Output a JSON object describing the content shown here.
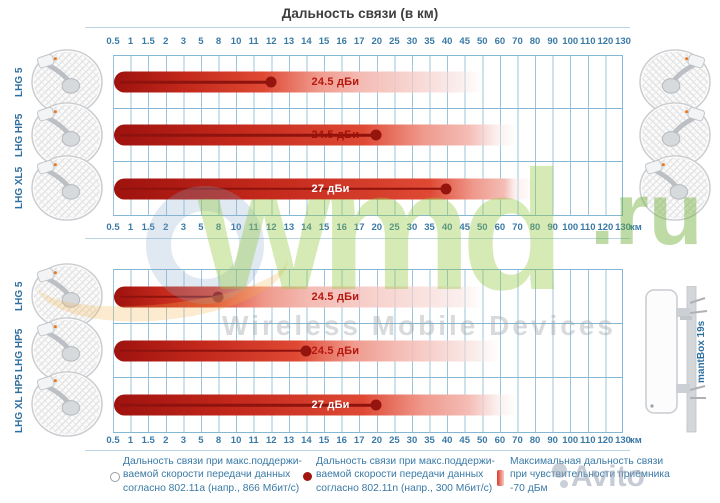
{
  "page": {
    "title": "Дальность связи (в км)"
  },
  "chart_data": {
    "type": "bar",
    "orientation": "horizontal-range",
    "title": "Дальность связи (в км)",
    "xlabel": "км",
    "x_unit": "км",
    "x_tick_labels": [
      "0.5",
      "1",
      "1.5",
      "2",
      "3",
      "5",
      "8",
      "10",
      "11",
      "12",
      "13",
      "14",
      "15",
      "16",
      "17",
      "20",
      "25",
      "30",
      "35",
      "40",
      "45",
      "50",
      "60",
      "70",
      "80",
      "90",
      "100",
      "110",
      "120",
      "130"
    ],
    "grid": true,
    "groups": [
      {
        "rows": [
          {
            "device": "LHG 5",
            "gain": "24.5 дБи",
            "gain_dbi": 24.5,
            "range_n_km": 12,
            "dot_tick": "12",
            "max_range_approx_km": 50,
            "fade_tick": "50",
            "label_color": "#b5180f"
          },
          {
            "device": "LHG HP5",
            "gain": "24.5 дБи",
            "gain_dbi": 24.5,
            "range_n_km": 20,
            "dot_tick": "20",
            "max_range_approx_km": 70,
            "fade_tick": "70",
            "label_color": "#9e1208"
          },
          {
            "device": "LHG XL5",
            "gain": "27 дБи",
            "gain_dbi": 27,
            "range_n_km": 40,
            "dot_tick": "40",
            "max_range_approx_km": 80,
            "fade_tick": "80",
            "label_color": "#ffffff"
          }
        ],
        "right_side": "lhg-dishes"
      },
      {
        "rows": [
          {
            "device": "LHG 5",
            "gain": "24.5 дБи",
            "gain_dbi": 24.5,
            "range_n_km": 8,
            "dot_tick": "8",
            "max_range_approx_km": 50,
            "fade_tick": "50",
            "label_color": "#b5180f"
          },
          {
            "device": "LHG HP5",
            "gain": "24.5 дБи",
            "gain_dbi": 24.5,
            "range_n_km": 14,
            "dot_tick": "14",
            "max_range_approx_km": 60,
            "fade_tick": "60",
            "label_color": "#b5180f"
          },
          {
            "device": "LHG XL HP5",
            "gain": "27 дБи",
            "gain_dbi": 27,
            "range_n_km": 20,
            "dot_tick": "20",
            "max_range_approx_km": 70,
            "fade_tick": "70",
            "label_color": "#ffffff"
          }
        ],
        "right_side": "mantbox",
        "right_device_label": "mantBox 19s"
      }
    ],
    "legend_position": "bottom"
  },
  "legend": [
    {
      "marker": "circle-outline",
      "lines": [
        "Дальность связи при макс.поддержи-",
        "ваемой скорости передачи данных",
        "согласно 802.11a (напр., 866 Мбит/с)"
      ]
    },
    {
      "marker": "circle-filled",
      "lines": [
        "Дальность связи при макс.поддержи-",
        "ваемой скорости передачи данных",
        "согласно 802.11n (напр., 300 Мбит/с)"
      ]
    },
    {
      "marker": "gradient-bar",
      "lines": [
        "Максимальная дальность связи",
        "при чувствительности приёмника",
        "-70 дБм"
      ]
    }
  ],
  "watermarks": {
    "brand": "wmd",
    "domain": ".ru",
    "tagline": "Wireless Mobile Devices",
    "marketplace": "Avito"
  },
  "colors": {
    "axis_text": "#3a7aa6",
    "grid_line": "#84b7d4",
    "bar_dark_red": "#9e120e",
    "bar_red": "#df4934",
    "bar_pink": "#f4bcb5",
    "dot_red": "#96140e",
    "device_label_blue": "#2e6f9f"
  }
}
